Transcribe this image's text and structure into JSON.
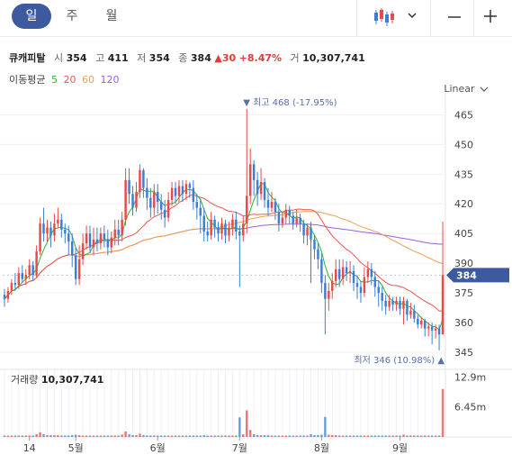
{
  "tabs": [
    {
      "label": "일"
    },
    {
      "label": "주"
    },
    {
      "label": "월"
    }
  ],
  "toolbar": {
    "chart_type_icon": "candlestick-icon",
    "dropdown_icon": "chevron-down-icon",
    "minus_icon": "minus-icon",
    "plus_icon": "plus-icon"
  },
  "stock": {
    "name": "큐캐피탈",
    "open_label": "시",
    "open": "354",
    "high_label": "고",
    "high": "411",
    "low_label": "저",
    "low": "354",
    "close_label": "종",
    "close": "384",
    "change": "▲30",
    "change_pct": "+8.47%",
    "volume_label": "거",
    "volume": "10,307,741"
  },
  "moving_average": {
    "label": "이동평균",
    "periods": [
      {
        "value": "5",
        "color": "#2db52d"
      },
      {
        "value": "20",
        "color": "#e8584f"
      },
      {
        "value": "60",
        "color": "#f0a050"
      },
      {
        "value": "120",
        "color": "#9a5ee0"
      }
    ]
  },
  "scale_mode": "Linear",
  "chart_data": {
    "type": "candlestick",
    "y_ticks": [
      "465",
      "450",
      "435",
      "420",
      "405",
      "390",
      "375",
      "360",
      "345"
    ],
    "y_range": [
      340,
      472
    ],
    "x_ticks": [
      "14",
      "5월",
      "6월",
      "7월",
      "8월",
      "9월"
    ],
    "current_price_label": "384",
    "max_annotation": {
      "label": "최고",
      "value": "468",
      "pct": "(-17.95%)"
    },
    "min_annotation": {
      "label": "최저",
      "value": "346",
      "pct": "(10.98%)"
    },
    "volume": {
      "label": "거래량",
      "value": "10,307,741",
      "ticks": [
        "12.9m",
        "6.45m"
      ],
      "max": 14.5
    },
    "colors": {
      "up": "#e84a4a",
      "down": "#3b7fd4",
      "ma5": "#2db52d",
      "ma20": "#e8584f",
      "ma60": "#f0a050",
      "ma120": "#9a5ee0",
      "current": "#3d5a9e"
    },
    "candles": [
      [
        374,
        372,
        377,
        368,
        0.3
      ],
      [
        372,
        376,
        378,
        370,
        0.3
      ],
      [
        376,
        380,
        382,
        374,
        0.3
      ],
      [
        380,
        379,
        385,
        376,
        0.3
      ],
      [
        379,
        385,
        388,
        377,
        0.3
      ],
      [
        385,
        382,
        389,
        380,
        0.3
      ],
      [
        382,
        384,
        387,
        379,
        0.3
      ],
      [
        384,
        389,
        392,
        382,
        0.3
      ],
      [
        389,
        384,
        391,
        381,
        0.3
      ],
      [
        384,
        396,
        399,
        383,
        0.6
      ],
      [
        396,
        410,
        413,
        394,
        1.0
      ],
      [
        410,
        405,
        418,
        401,
        0.6
      ],
      [
        405,
        408,
        412,
        401,
        0.4
      ],
      [
        408,
        404,
        411,
        398,
        0.4
      ],
      [
        404,
        410,
        415,
        401,
        0.4
      ],
      [
        410,
        412,
        418,
        408,
        0.4
      ],
      [
        412,
        407,
        415,
        403,
        0.3
      ],
      [
        407,
        405,
        410,
        400,
        0.3
      ],
      [
        405,
        401,
        409,
        394,
        0.3
      ],
      [
        401,
        394,
        405,
        388,
        0.4
      ],
      [
        394,
        382,
        398,
        379,
        0.5
      ],
      [
        382,
        392,
        399,
        379,
        0.4
      ],
      [
        392,
        400,
        405,
        389,
        0.3
      ],
      [
        400,
        405,
        409,
        397,
        0.3
      ],
      [
        405,
        398,
        409,
        395,
        0.3
      ],
      [
        398,
        402,
        408,
        394,
        0.3
      ],
      [
        402,
        400,
        408,
        396,
        0.3
      ],
      [
        400,
        405,
        408,
        397,
        0.3
      ],
      [
        405,
        402,
        409,
        398,
        0.3
      ],
      [
        402,
        398,
        407,
        394,
        0.3
      ],
      [
        398,
        403,
        406,
        395,
        0.3
      ],
      [
        403,
        407,
        412,
        399,
        0.3
      ],
      [
        407,
        404,
        412,
        399,
        0.3
      ],
      [
        404,
        412,
        416,
        401,
        0.5
      ],
      [
        412,
        432,
        438,
        409,
        1.2
      ],
      [
        432,
        425,
        438,
        420,
        0.6
      ],
      [
        425,
        418,
        429,
        414,
        0.4
      ],
      [
        418,
        426,
        431,
        416,
        0.4
      ],
      [
        426,
        437,
        440,
        423,
        0.7
      ],
      [
        437,
        428,
        438,
        423,
        0.4
      ],
      [
        428,
        423,
        433,
        417,
        0.3
      ],
      [
        423,
        418,
        428,
        413,
        0.3
      ],
      [
        418,
        426,
        430,
        414,
        0.3
      ],
      [
        426,
        421,
        430,
        415,
        0.3
      ],
      [
        421,
        417,
        425,
        412,
        0.3
      ],
      [
        417,
        413,
        422,
        408,
        0.3
      ],
      [
        413,
        422,
        426,
        411,
        0.3
      ],
      [
        422,
        428,
        431,
        419,
        0.3
      ],
      [
        428,
        424,
        431,
        420,
        0.3
      ],
      [
        424,
        429,
        432,
        421,
        0.3
      ],
      [
        429,
        425,
        432,
        421,
        0.3
      ],
      [
        425,
        430,
        432,
        422,
        0.3
      ],
      [
        430,
        428,
        431,
        423,
        0.3
      ],
      [
        428,
        421,
        432,
        417,
        0.3
      ],
      [
        421,
        418,
        425,
        412,
        0.3
      ],
      [
        418,
        414,
        422,
        405,
        0.3
      ],
      [
        414,
        406,
        418,
        401,
        0.4
      ],
      [
        406,
        404,
        411,
        401,
        0.3
      ],
      [
        404,
        412,
        416,
        402,
        0.3
      ],
      [
        412,
        408,
        414,
        403,
        0.3
      ],
      [
        408,
        405,
        411,
        401,
        0.3
      ],
      [
        405,
        410,
        413,
        402,
        0.3
      ],
      [
        410,
        404,
        412,
        400,
        0.3
      ],
      [
        404,
        408,
        411,
        401,
        0.3
      ],
      [
        408,
        412,
        415,
        404,
        0.3
      ],
      [
        412,
        406,
        416,
        402,
        0.3
      ],
      [
        406,
        404,
        409,
        378,
        4.2
      ],
      [
        404,
        410,
        414,
        401,
        0.6
      ],
      [
        410,
        424,
        468,
        405,
        5.7
      ],
      [
        424,
        440,
        448,
        420,
        1.5
      ],
      [
        440,
        432,
        442,
        424,
        0.6
      ],
      [
        432,
        425,
        436,
        419,
        0.4
      ],
      [
        425,
        431,
        438,
        422,
        0.4
      ],
      [
        431,
        422,
        433,
        418,
        0.4
      ],
      [
        422,
        418,
        428,
        414,
        0.4
      ],
      [
        418,
        421,
        426,
        416,
        0.3
      ],
      [
        421,
        416,
        423,
        412,
        0.3
      ],
      [
        416,
        410,
        420,
        406,
        0.3
      ],
      [
        410,
        413,
        416,
        408,
        0.3
      ],
      [
        413,
        417,
        420,
        410,
        0.3
      ],
      [
        417,
        414,
        419,
        410,
        0.3
      ],
      [
        414,
        410,
        416,
        407,
        0.3
      ],
      [
        410,
        413,
        417,
        408,
        0.3
      ],
      [
        413,
        410,
        415,
        406,
        0.3
      ],
      [
        410,
        404,
        412,
        400,
        0.3
      ],
      [
        404,
        408,
        410,
        399,
        0.3
      ],
      [
        408,
        402,
        411,
        380,
        0.6
      ],
      [
        402,
        397,
        404,
        392,
        0.4
      ],
      [
        397,
        392,
        400,
        387,
        0.4
      ],
      [
        392,
        380,
        395,
        375,
        0.5
      ],
      [
        380,
        372,
        384,
        354,
        4.3
      ],
      [
        372,
        376,
        380,
        366,
        0.5
      ],
      [
        376,
        381,
        385,
        372,
        0.4
      ],
      [
        381,
        387,
        392,
        378,
        0.4
      ],
      [
        387,
        382,
        392,
        378,
        0.3
      ],
      [
        382,
        388,
        392,
        379,
        0.3
      ],
      [
        388,
        385,
        391,
        381,
        0.3
      ],
      [
        385,
        386,
        391,
        380,
        0.3
      ],
      [
        386,
        380,
        389,
        376,
        0.3
      ],
      [
        380,
        378,
        384,
        372,
        0.3
      ],
      [
        378,
        375,
        381,
        370,
        0.3
      ],
      [
        375,
        383,
        388,
        373,
        0.3
      ],
      [
        383,
        387,
        391,
        380,
        0.3
      ],
      [
        387,
        383,
        390,
        379,
        0.3
      ],
      [
        383,
        378,
        386,
        373,
        0.3
      ],
      [
        378,
        375,
        381,
        368,
        0.3
      ],
      [
        375,
        371,
        378,
        366,
        0.3
      ],
      [
        371,
        368,
        374,
        364,
        0.3
      ],
      [
        368,
        371,
        374,
        366,
        0.3
      ],
      [
        371,
        369,
        373,
        366,
        0.3
      ],
      [
        369,
        371,
        373,
        366,
        0.3
      ],
      [
        371,
        367,
        373,
        364,
        0.3
      ],
      [
        367,
        371,
        373,
        359,
        0.5
      ],
      [
        371,
        364,
        372,
        361,
        0.3
      ],
      [
        364,
        366,
        370,
        362,
        0.3
      ],
      [
        366,
        362,
        369,
        360,
        0.3
      ],
      [
        362,
        359,
        364,
        357,
        0.3
      ],
      [
        359,
        361,
        363,
        357,
        0.3
      ],
      [
        361,
        357,
        362,
        353,
        0.3
      ],
      [
        357,
        358,
        360,
        353,
        0.3
      ],
      [
        358,
        356,
        360,
        349,
        0.3
      ],
      [
        356,
        357,
        359,
        352,
        0.3
      ],
      [
        357,
        354,
        359,
        346,
        0.3
      ],
      [
        354,
        384,
        411,
        354,
        10.3
      ]
    ]
  }
}
